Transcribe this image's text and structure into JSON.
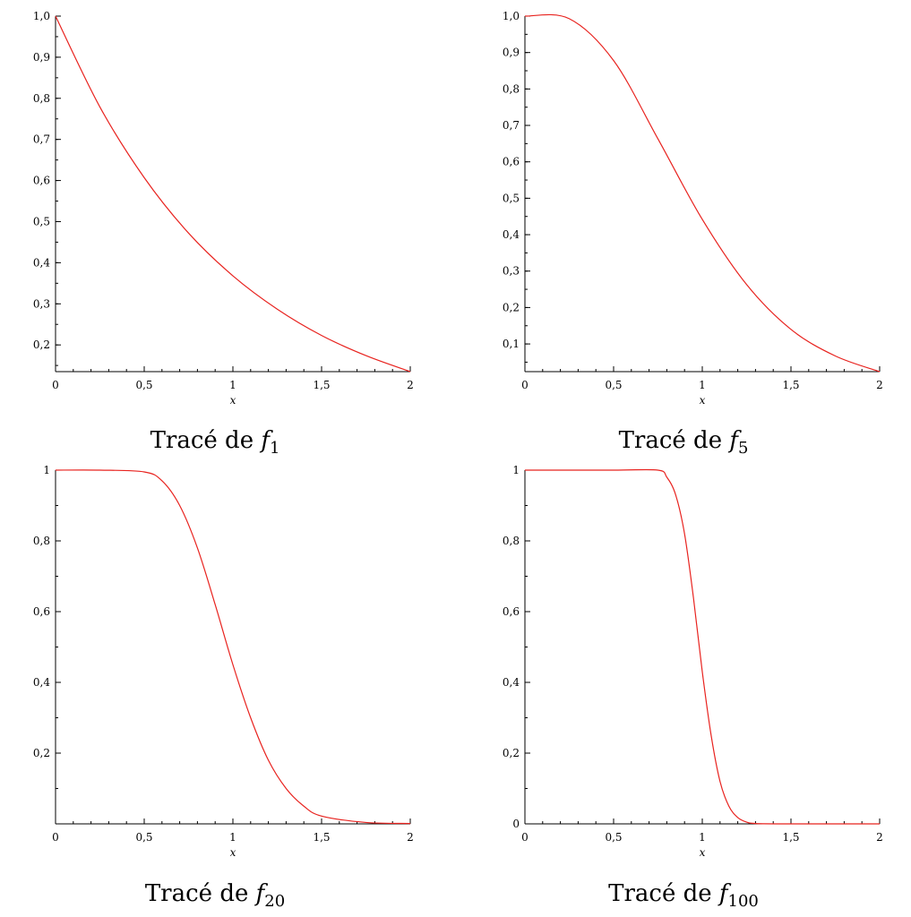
{
  "chart_data": [
    {
      "type": "line",
      "caption": {
        "prefix": "Tracé de ",
        "func": "f",
        "sub": "1"
      },
      "xlabel": "x",
      "xlim": [
        0,
        2
      ],
      "ylim": [
        0.135,
        1.0
      ],
      "xticks": [
        "0",
        "0,5",
        "1",
        "1,5",
        "2"
      ],
      "yticks": [
        "0,2",
        "0,3",
        "0,4",
        "0,5",
        "0,6",
        "0,7",
        "0,8",
        "0,9",
        "1,0"
      ],
      "color": "#e8231f",
      "series": [
        {
          "x": [
            0,
            0.25,
            0.5,
            0.75,
            1,
            1.25,
            1.5,
            1.75,
            2
          ],
          "y": [
            1,
            0.779,
            0.607,
            0.472,
            0.368,
            0.287,
            0.223,
            0.174,
            0.135
          ]
        }
      ]
    },
    {
      "type": "line",
      "caption": {
        "prefix": "Tracé de ",
        "func": "f",
        "sub": "5"
      },
      "xlabel": "x",
      "xlim": [
        0,
        2
      ],
      "ylim": [
        0.024,
        1.0
      ],
      "xticks": [
        "0",
        "0,5",
        "1",
        "1,5",
        "2"
      ],
      "yticks": [
        "0,1",
        "0,2",
        "0,3",
        "0,4",
        "0,5",
        "0,6",
        "0,7",
        "0,8",
        "0,9",
        "1,0"
      ],
      "color": "#e8231f",
      "series": [
        {
          "x": [
            0,
            0.25,
            0.5,
            0.75,
            1,
            1.25,
            1.5,
            1.75,
            2
          ],
          "y": [
            1,
            0.993,
            0.878,
            0.663,
            0.442,
            0.263,
            0.14,
            0.067,
            0.024
          ]
        }
      ]
    },
    {
      "type": "line",
      "caption": {
        "prefix": "Tracé de ",
        "func": "f",
        "sub": "20"
      },
      "xlabel": "x",
      "xlim": [
        0,
        2
      ],
      "ylim": [
        0,
        1.0
      ],
      "xticks": [
        "0",
        "0,5",
        "1",
        "1,5",
        "2"
      ],
      "yticks": [
        "0,2",
        "0,4",
        "0,6",
        "0,8",
        "1"
      ],
      "color": "#e8231f",
      "series": [
        {
          "x": [
            0,
            0.25,
            0.5,
            0.6,
            0.7,
            0.8,
            0.9,
            1,
            1.1,
            1.2,
            1.3,
            1.4,
            1.5,
            1.75,
            2
          ],
          "y": [
            1,
            1,
            0.995,
            0.97,
            0.9,
            0.78,
            0.62,
            0.45,
            0.3,
            0.18,
            0.1,
            0.05,
            0.022,
            0.004,
            0.001
          ]
        }
      ]
    },
    {
      "type": "line",
      "caption": {
        "prefix": "Tracé de ",
        "func": "f",
        "sub": "100"
      },
      "xlabel": "x",
      "xlim": [
        0,
        2
      ],
      "ylim": [
        0,
        1.0
      ],
      "xticks": [
        "0",
        "0,5",
        "1",
        "1,5",
        "2"
      ],
      "yticks": [
        "0",
        "0,2",
        "0,4",
        "0,6",
        "0,8",
        "1"
      ],
      "color": "#e8231f",
      "series": [
        {
          "x": [
            0,
            0.5,
            0.75,
            0.8,
            0.85,
            0.9,
            0.95,
            1,
            1.05,
            1.1,
            1.15,
            1.2,
            1.25,
            1.3,
            1.5,
            2
          ],
          "y": [
            1,
            1,
            1,
            0.98,
            0.93,
            0.82,
            0.64,
            0.43,
            0.25,
            0.12,
            0.05,
            0.018,
            0.005,
            0.001,
            0,
            0
          ]
        }
      ]
    }
  ]
}
